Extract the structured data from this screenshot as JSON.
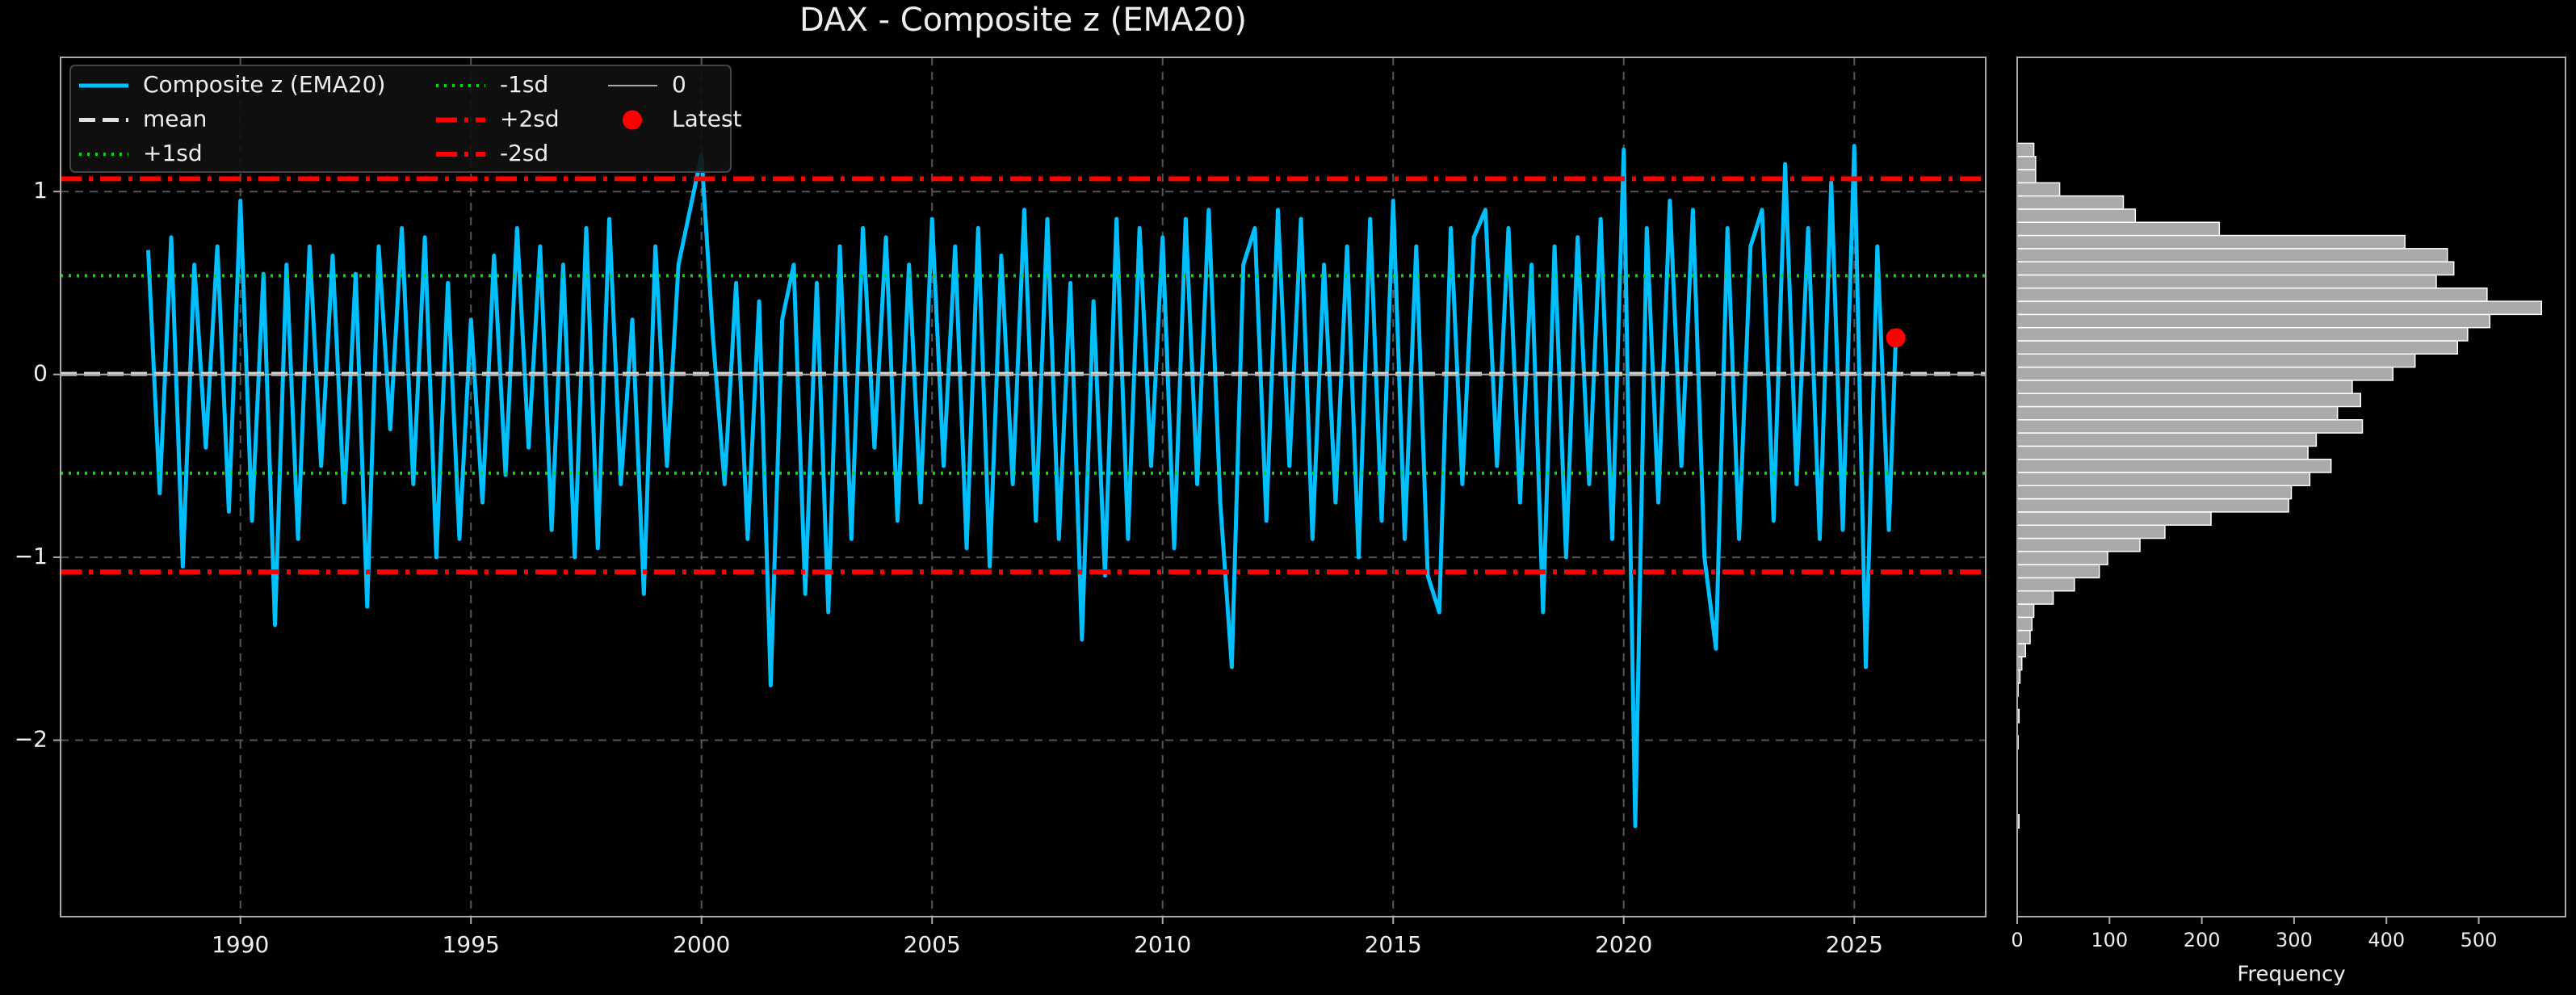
{
  "chart_data": [
    {
      "type": "line",
      "title": "DAX - Composite z (EMA20)",
      "x": [
        1988,
        1988.25,
        1988.5,
        1988.75,
        1989,
        1989.25,
        1989.5,
        1989.75,
        1990,
        1990.25,
        1990.5,
        1990.75,
        1991,
        1991.25,
        1991.5,
        1991.75,
        1992,
        1992.25,
        1992.5,
        1992.75,
        1993,
        1993.25,
        1993.5,
        1993.75,
        1994,
        1994.25,
        1994.5,
        1994.75,
        1995,
        1995.25,
        1995.5,
        1995.75,
        1996,
        1996.25,
        1996.5,
        1996.75,
        1997,
        1997.25,
        1997.5,
        1997.75,
        1998,
        1998.25,
        1998.5,
        1998.75,
        1999,
        1999.25,
        1999.5,
        1999.75,
        2000,
        2000.25,
        2000.5,
        2000.75,
        2001,
        2001.25,
        2001.5,
        2001.75,
        2002,
        2002.25,
        2002.5,
        2002.75,
        2003,
        2003.25,
        2003.5,
        2003.75,
        2004,
        2004.25,
        2004.5,
        2004.75,
        2005,
        2005.25,
        2005.5,
        2005.75,
        2006,
        2006.25,
        2006.5,
        2006.75,
        2007,
        2007.25,
        2007.5,
        2007.75,
        2008,
        2008.25,
        2008.5,
        2008.75,
        2009,
        2009.25,
        2009.5,
        2009.75,
        2010,
        2010.25,
        2010.5,
        2010.75,
        2011,
        2011.25,
        2011.5,
        2011.75,
        2012,
        2012.25,
        2012.5,
        2012.75,
        2013,
        2013.25,
        2013.5,
        2013.75,
        2014,
        2014.25,
        2014.5,
        2014.75,
        2015,
        2015.25,
        2015.5,
        2015.75,
        2016,
        2016.25,
        2016.5,
        2016.75,
        2017,
        2017.25,
        2017.5,
        2017.75,
        2018,
        2018.25,
        2018.5,
        2018.75,
        2019,
        2019.25,
        2019.5,
        2019.75,
        2020,
        2020.25,
        2020.5,
        2020.75,
        2021,
        2021.25,
        2021.5,
        2021.75,
        2022,
        2022.25,
        2022.5,
        2022.75,
        2023,
        2023.25,
        2023.5,
        2023.75,
        2024,
        2024.25,
        2024.5,
        2024.75,
        2025,
        2025.25,
        2025.5,
        2025.75,
        2025.9
      ],
      "series": [
        {
          "name": "Composite z (EMA20)",
          "color": "#00bfff",
          "values": [
            0.68,
            -0.65,
            0.75,
            -1.05,
            0.6,
            -0.4,
            0.7,
            -0.75,
            0.95,
            -0.8,
            0.55,
            -1.37,
            0.6,
            -0.9,
            0.7,
            -0.5,
            0.65,
            -0.7,
            0.55,
            -1.27,
            0.7,
            -0.3,
            0.8,
            -0.6,
            0.75,
            -1.0,
            0.5,
            -0.9,
            0.3,
            -0.7,
            0.65,
            -0.55,
            0.8,
            -0.4,
            0.7,
            -0.85,
            0.6,
            -1.0,
            0.8,
            -0.95,
            0.85,
            -0.6,
            0.3,
            -1.2,
            0.7,
            -0.5,
            0.6,
            0.9,
            1.2,
            0.2,
            -0.6,
            0.5,
            -0.9,
            0.4,
            -1.7,
            0.3,
            0.6,
            -1.2,
            0.5,
            -1.3,
            0.7,
            -0.9,
            0.8,
            -0.4,
            0.75,
            -0.8,
            0.6,
            -0.7,
            0.85,
            -0.5,
            0.7,
            -0.95,
            0.8,
            -1.05,
            0.65,
            -0.6,
            0.9,
            -0.8,
            0.85,
            -0.9,
            0.5,
            -1.45,
            0.4,
            -1.1,
            0.85,
            -0.9,
            0.8,
            -0.5,
            0.75,
            -0.95,
            0.85,
            -0.6,
            0.9,
            -0.7,
            -1.6,
            0.6,
            0.8,
            -0.8,
            0.9,
            -0.5,
            0.85,
            -0.9,
            0.6,
            -0.7,
            0.7,
            -1.0,
            0.85,
            -0.8,
            0.95,
            -0.9,
            0.7,
            -1.1,
            -1.3,
            0.8,
            -0.6,
            0.75,
            0.9,
            -0.5,
            0.8,
            -0.7,
            0.6,
            -1.3,
            0.7,
            -1.0,
            0.75,
            -0.6,
            0.85,
            -0.9,
            1.23,
            -2.47,
            0.8,
            -0.7,
            0.95,
            -0.5,
            0.9,
            -1.0,
            -1.5,
            0.8,
            -0.9,
            0.7,
            0.9,
            -0.8,
            1.15,
            -0.6,
            0.8,
            -0.9,
            1.05,
            -0.85,
            1.25,
            -1.6,
            0.7,
            -0.85,
            0.2
          ]
        }
      ],
      "hlines": [
        {
          "name": "mean",
          "value": 0.003,
          "color": "#e0e0e0",
          "style": "dashed"
        },
        {
          "name": "+1sd",
          "value": 0.54,
          "color": "#00dd00",
          "style": "dotted"
        },
        {
          "name": "-1sd",
          "value": -0.54,
          "color": "#00dd00",
          "style": "dotted"
        },
        {
          "name": "+2sd",
          "value": 1.07,
          "color": "#ff0000",
          "style": "dashdot"
        },
        {
          "name": "-2sd",
          "value": -1.08,
          "color": "#ff0000",
          "style": "dashdot"
        },
        {
          "name": "0",
          "value": 0,
          "color": "#aaaaaa",
          "style": "solid"
        }
      ],
      "points": [
        {
          "name": "Latest",
          "color": "#ff0000",
          "x": [
            2025.9
          ],
          "values": [
            0.2
          ]
        }
      ],
      "xlim": [
        1986.1,
        2027.85
      ],
      "xticks": [
        1990,
        1995,
        2000,
        2005,
        2010,
        2015,
        2020,
        2025
      ],
      "ylim": [
        -2.965,
        1.734
      ],
      "yticks": [
        {
          "value": -2,
          "label": "−2"
        },
        {
          "value": -1,
          "label": "−1"
        },
        0,
        1
      ],
      "grid": true,
      "legend": "upper left"
    },
    {
      "type": "histogram",
      "orientation": "horizontal",
      "color": "#aaaaaa",
      "bins": [
        -2.48,
        -2.408,
        -2.336,
        -2.264,
        -2.192,
        -2.12,
        -2.048,
        -1.976,
        -1.904,
        -1.832,
        -1.76,
        -1.688,
        -1.616,
        -1.544,
        -1.472,
        -1.4,
        -1.328,
        -1.256,
        -1.184,
        -1.112,
        -1.04,
        -0.968,
        -0.896,
        -0.824,
        -0.752,
        -0.68,
        -0.608,
        -0.536,
        -0.464,
        -0.392,
        -0.32,
        -0.248,
        -0.176,
        -0.104,
        -0.032,
        0.04,
        0.112,
        0.184,
        0.256,
        0.328,
        0.4,
        0.472,
        0.544,
        0.616,
        0.688,
        0.76,
        0.832,
        0.904,
        0.976,
        1.048,
        1.12,
        1.192,
        1.264
      ],
      "counts": [
        2,
        0,
        0,
        0,
        0,
        0,
        1,
        0,
        2,
        0,
        1,
        3,
        5,
        9,
        14,
        16,
        18,
        39,
        62,
        89,
        98,
        133,
        160,
        210,
        294,
        297,
        317,
        340,
        315,
        324,
        374,
        347,
        372,
        363,
        407,
        431,
        477,
        488,
        512,
        568,
        509,
        454,
        473,
        466,
        420,
        219,
        128,
        115,
        46,
        20,
        20,
        18
      ],
      "xlim": [
        0,
        594
      ],
      "xticks": [
        0,
        100,
        200,
        300,
        400,
        500
      ],
      "xlabel": "Frequency",
      "ylim": [
        -2.965,
        1.734
      ]
    }
  ]
}
